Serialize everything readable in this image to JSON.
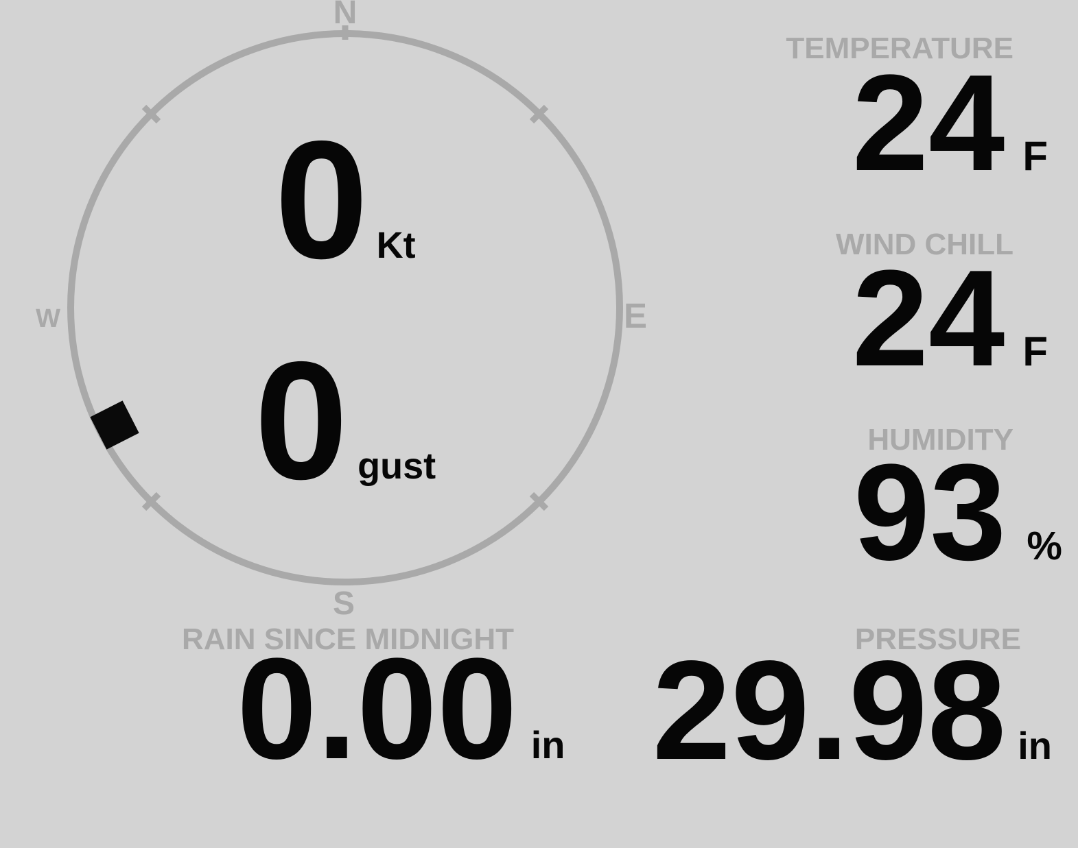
{
  "colors": {
    "background": "#d3d3d3",
    "muted": "#a9a9a9",
    "value": "#060606",
    "marker": "#0a0a0a"
  },
  "compass": {
    "directions": {
      "north": "N",
      "east": "E",
      "south": "S",
      "west": "W"
    },
    "wind_speed": {
      "value": "0",
      "unit": "Kt"
    },
    "wind_gust": {
      "value": "0",
      "unit": "gust"
    },
    "wind_direction_deg": 243
  },
  "metrics": {
    "temperature": {
      "label": "TEMPERATURE",
      "value": "24",
      "unit": "F"
    },
    "wind_chill": {
      "label": "WIND CHILL",
      "value": "24",
      "unit": "F"
    },
    "humidity": {
      "label": "HUMIDITY",
      "value": "93",
      "unit": "%"
    },
    "rain_since_midnight": {
      "label": "RAIN SINCE MIDNIGHT",
      "value": "0.00",
      "unit": "in"
    },
    "pressure": {
      "label": "PRESSURE",
      "value": "29.98",
      "unit": "in"
    }
  }
}
